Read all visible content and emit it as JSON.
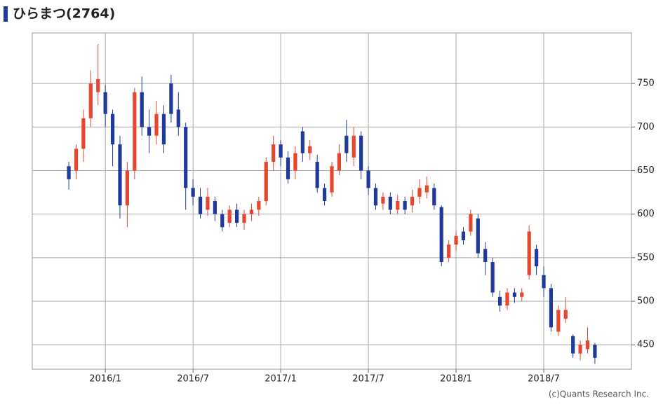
{
  "chart_data": {
    "type": "candlestick",
    "title": "ひらまつ(2764)",
    "footer": "(c)Quants Research Inc.",
    "up_color": "#e8472f",
    "down_color": "#1f3a9a",
    "grid": true,
    "y_axis_side": "right",
    "x": [
      -5,
      -4,
      -3,
      -2,
      -1,
      0,
      1,
      2,
      3,
      4,
      5,
      6,
      7,
      8,
      9,
      10,
      11,
      12,
      13,
      14,
      15,
      16,
      17,
      18,
      19,
      20,
      21,
      22,
      23,
      24,
      25,
      26,
      27,
      28,
      29,
      30,
      31,
      32,
      33,
      34,
      35,
      36,
      37,
      38,
      39,
      40,
      41,
      42,
      43,
      44,
      45,
      46,
      47,
      48,
      49,
      50,
      51,
      52,
      53,
      54,
      55,
      56,
      57,
      58,
      59,
      60,
      61,
      62,
      63,
      64,
      65,
      66,
      67
    ],
    "open": [
      655,
      650,
      675,
      710,
      740,
      740,
      715,
      680,
      610,
      650,
      740,
      700,
      690,
      715,
      750,
      720,
      700,
      630,
      620,
      605,
      615,
      600,
      590,
      605,
      590,
      600,
      605,
      615,
      660,
      680,
      665,
      650,
      695,
      670,
      660,
      630,
      625,
      650,
      690,
      665,
      690,
      650,
      630,
      612,
      620,
      605,
      615,
      610,
      620,
      625,
      630,
      608,
      550,
      565,
      580,
      580,
      595,
      560,
      545,
      505,
      495,
      510,
      505,
      530,
      560,
      530,
      515,
      465,
      480,
      460,
      440,
      445,
      450
    ],
    "high": [
      660,
      680,
      720,
      765,
      795,
      748,
      720,
      690,
      660,
      745,
      758,
      720,
      730,
      725,
      760,
      740,
      705,
      640,
      630,
      630,
      620,
      605,
      610,
      612,
      605,
      612,
      620,
      665,
      690,
      685,
      672,
      678,
      700,
      685,
      668,
      635,
      660,
      680,
      708,
      700,
      695,
      655,
      635,
      625,
      625,
      622,
      620,
      628,
      640,
      643,
      635,
      610,
      570,
      580,
      585,
      605,
      600,
      568,
      550,
      512,
      515,
      515,
      515,
      587,
      565,
      540,
      520,
      495,
      505,
      462,
      455,
      470,
      452
    ],
    "low": [
      628,
      640,
      660,
      700,
      725,
      700,
      655,
      595,
      585,
      640,
      690,
      670,
      680,
      670,
      705,
      690,
      605,
      610,
      595,
      598,
      592,
      580,
      585,
      585,
      582,
      592,
      598,
      610,
      650,
      655,
      635,
      640,
      660,
      662,
      625,
      610,
      620,
      645,
      660,
      655,
      640,
      622,
      605,
      605,
      600,
      600,
      600,
      602,
      612,
      618,
      605,
      540,
      545,
      558,
      565,
      575,
      550,
      530,
      505,
      488,
      490,
      498,
      500,
      525,
      530,
      505,
      465,
      460,
      475,
      435,
      432,
      440,
      428
    ],
    "close": [
      640,
      675,
      710,
      750,
      755,
      715,
      680,
      610,
      650,
      740,
      700,
      690,
      715,
      680,
      715,
      700,
      630,
      620,
      600,
      620,
      600,
      585,
      605,
      590,
      600,
      605,
      615,
      660,
      680,
      665,
      640,
      670,
      670,
      678,
      630,
      615,
      655,
      670,
      670,
      690,
      650,
      630,
      610,
      620,
      605,
      615,
      605,
      620,
      630,
      633,
      610,
      545,
      565,
      575,
      570,
      600,
      555,
      545,
      510,
      495,
      510,
      505,
      510,
      580,
      540,
      515,
      470,
      490,
      490,
      440,
      450,
      455,
      435
    ],
    "xlim": [
      -10,
      72
    ],
    "xticks": [
      {
        "value": 0,
        "label": "2016/1"
      },
      {
        "value": 12,
        "label": "2016/7"
      },
      {
        "value": 24,
        "label": "2017/1"
      },
      {
        "value": 36,
        "label": "2017/7"
      },
      {
        "value": 48,
        "label": "2018/1"
      },
      {
        "value": 60,
        "label": "2018/7"
      }
    ],
    "ylim": [
      422,
      808
    ],
    "yticks": [
      450,
      500,
      550,
      600,
      650,
      700,
      750
    ]
  }
}
